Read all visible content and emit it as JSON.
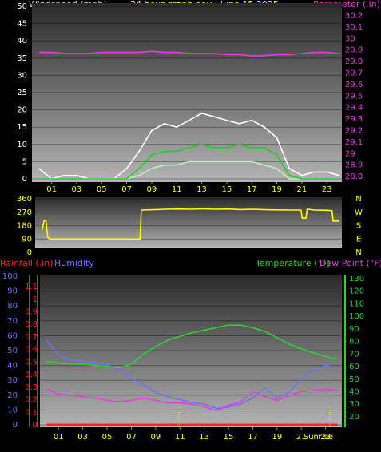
{
  "chart_data": [
    {
      "type": "line",
      "title": "24 hour graph day : June 15 2025",
      "ylabel": "Windspeed (mph)",
      "y2label": "Barometer (.in)",
      "x": [
        0,
        1,
        2,
        3,
        4,
        5,
        6,
        7,
        8,
        9,
        10,
        11,
        12,
        13,
        14,
        15,
        16,
        17,
        18,
        19,
        20,
        21,
        22,
        23,
        24
      ],
      "xlim": [
        -0.57,
        24.2
      ],
      "xticks": [
        {
          "value": 1,
          "label": "01"
        },
        {
          "value": 3,
          "label": "03"
        },
        {
          "value": 5,
          "label": "05"
        },
        {
          "value": 7,
          "label": "07"
        },
        {
          "value": 9,
          "label": "09"
        },
        11,
        13,
        15,
        17,
        19,
        21,
        23
      ],
      "ylim": [
        0,
        50
      ],
      "yticks": [
        0,
        5,
        10,
        15,
        20,
        25,
        30,
        35,
        40,
        45,
        50
      ],
      "y2lim": [
        28.78,
        30.28
      ],
      "y2ticks": [
        28.8,
        28.9,
        29,
        29.1,
        29.2,
        29.3,
        29.4,
        29.5,
        29.6,
        29.7,
        29.8,
        29.9,
        30,
        30.1,
        30.2
      ],
      "grid": true,
      "series": [
        {
          "color": "#b8f0b8",
          "values": [
            0,
            0,
            0,
            0,
            0,
            0,
            0,
            0,
            1,
            3,
            4,
            4,
            5,
            5,
            5,
            5,
            5,
            5,
            4,
            3,
            0,
            0,
            0,
            0,
            0
          ]
        },
        {
          "color": "#ffffff",
          "values": [
            3,
            0,
            1,
            1,
            0,
            0,
            0,
            3,
            8,
            14,
            16,
            15,
            17,
            19,
            18,
            17,
            16,
            17,
            15,
            12,
            3,
            1,
            2,
            2,
            1
          ]
        },
        {
          "color": "#22cc22",
          "values": [
            0,
            0,
            0,
            0,
            0,
            0,
            0,
            0,
            3,
            7,
            8,
            8,
            9,
            10,
            9,
            9,
            10,
            9,
            9,
            7,
            1,
            0,
            0,
            0,
            0
          ]
        },
        {
          "color": "#e040e0",
          "axis": "y2",
          "values": [
            29.88,
            29.88,
            29.87,
            29.87,
            29.87,
            29.88,
            29.88,
            29.88,
            29.88,
            29.89,
            29.88,
            29.88,
            29.87,
            29.87,
            29.87,
            29.86,
            29.86,
            29.85,
            29.85,
            29.86,
            29.86,
            29.87,
            29.88,
            29.88,
            29.87
          ]
        }
      ]
    },
    {
      "type": "line",
      "x": [
        0,
        0.15,
        0.3,
        0.45,
        0.6,
        7.9,
        8.0,
        9,
        10,
        11,
        12,
        13,
        14,
        15,
        16,
        17,
        18,
        19,
        20,
        20.9,
        21.0,
        21.3,
        21.4,
        22,
        23,
        23.4,
        23.5,
        24
      ],
      "xlim": [
        -0.57,
        24.2
      ],
      "ylim": [
        0,
        360
      ],
      "yticks": [
        0,
        90,
        180,
        270,
        360
      ],
      "y2lim": [
        0,
        360
      ],
      "y2ticks": [
        {
          "value": 360,
          "label": "N"
        },
        {
          "value": 270,
          "label": "W"
        },
        {
          "value": 180,
          "label": "S"
        },
        {
          "value": 90,
          "label": "E"
        },
        {
          "value": 0,
          "label": "N"
        }
      ],
      "grid": true,
      "series": [
        {
          "color": "#ffff00",
          "values": [
            150,
            215,
            215,
            100,
            90,
            90,
            285,
            287,
            290,
            292,
            290,
            293,
            290,
            292,
            288,
            290,
            287,
            286,
            285,
            285,
            230,
            230,
            290,
            285,
            283,
            280,
            210,
            210
          ]
        }
      ]
    },
    {
      "type": "line",
      "x": [
        0,
        1,
        2,
        3,
        4,
        5,
        6,
        7,
        8,
        9,
        10,
        11,
        12,
        13,
        14,
        15,
        16,
        17,
        18,
        19,
        20,
        21,
        22,
        23,
        24
      ],
      "xlim": [
        -0.53,
        24.34
      ],
      "xticks": [
        {
          "value": 1,
          "label": "01"
        },
        {
          "value": 3,
          "label": "03"
        },
        {
          "value": 5,
          "label": "05"
        },
        {
          "value": 7,
          "label": "07"
        },
        {
          "value": 9,
          "label": "09"
        },
        11,
        13,
        15,
        17,
        19,
        21,
        23
      ],
      "annotation": "Sunrise",
      "ylim": [
        0,
        100
      ],
      "yticks": [
        0,
        10,
        20,
        30,
        40,
        50,
        60,
        70,
        80,
        90,
        100
      ],
      "y2lim": [
        13.6,
        131.9
      ],
      "y2ticks": [
        20,
        30,
        40,
        50,
        60,
        70,
        80,
        90,
        100,
        110,
        120,
        130
      ],
      "y3lim": [
        0,
        1.183
      ],
      "y3ticks": [
        0,
        0.1,
        0.2,
        0.3,
        0.4,
        0.5,
        0.6,
        0.7,
        0.8,
        0.9,
        1,
        1.1
      ],
      "grid": true,
      "series": [
        {
          "name": "Rainfall (.in)",
          "color": "#ff2020",
          "axis": "y3",
          "values": [
            0,
            0,
            0,
            0,
            0,
            0,
            0,
            0,
            0,
            0,
            0,
            0,
            0,
            0,
            0,
            0,
            0,
            0,
            0,
            0,
            0,
            0,
            0,
            0,
            0
          ]
        },
        {
          "name": "Humidity",
          "color": "#7070ff",
          "values": [
            57,
            47,
            44,
            43,
            42,
            40,
            38,
            31,
            27,
            22,
            19,
            17,
            15,
            14,
            11,
            12,
            14,
            18,
            25,
            18,
            22,
            31,
            37,
            40,
            38
          ]
        },
        {
          "name": "Temperature (°F)",
          "color": "#30d030",
          "axis": "y2",
          "values": [
            64,
            63,
            62,
            62,
            61,
            60,
            59,
            62,
            70,
            76,
            81,
            84,
            87,
            89,
            91,
            93,
            93,
            91,
            88,
            83,
            78,
            74,
            71,
            68,
            66
          ]
        },
        {
          "name": "Dew Point (°F)",
          "color": "#e040e0",
          "axis": "y2",
          "values": [
            42,
            38,
            37,
            36,
            35,
            33,
            32,
            33,
            35,
            33,
            31,
            31,
            30,
            28,
            25,
            29,
            32,
            40,
            36,
            33,
            37,
            40,
            41,
            42,
            41
          ]
        }
      ]
    }
  ]
}
